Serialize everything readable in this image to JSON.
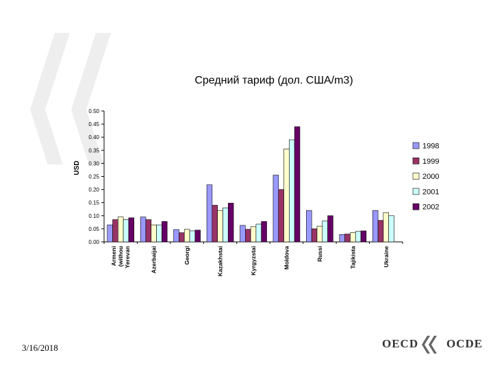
{
  "slide": {
    "date": "3/16/2018",
    "logo": {
      "left_text": "OECD",
      "right_text": "OCDE"
    }
  },
  "chart_data": {
    "type": "bar",
    "title": "Средний тариф (дол. США/m3)",
    "ylabel": "USD",
    "xlabel": "",
    "ylim": [
      0,
      0.5
    ],
    "yticks": [
      "0.00",
      "0.05",
      "0.10",
      "0.15",
      "0.20",
      "0.25",
      "0.30",
      "0.35",
      "0.40",
      "0.45",
      "0.50"
    ],
    "categories": [
      "Armenia (without Yerevan)",
      "Azerbaijan",
      "Georgia",
      "Kazakhstan",
      "Kyrgyzstan",
      "Moldova",
      "Russia",
      "Tajikistan",
      "Ukraine"
    ],
    "category_labels_visible": [
      [
        "Armeni",
        "(withou",
        "Yerevan"
      ],
      [
        "Azerbaijai"
      ],
      [
        "Georgi"
      ],
      [
        "Kazakhstai"
      ],
      [
        "Kyrgyzstai"
      ],
      [
        "Moldova"
      ],
      [
        "Russi"
      ],
      [
        "Tajikista"
      ],
      [
        "Ukraine"
      ]
    ],
    "series": [
      {
        "name": "1998",
        "color": "#9999ff",
        "values": [
          0.065,
          0.095,
          0.047,
          0.218,
          0.063,
          0.255,
          0.12,
          0.028,
          0.12
        ]
      },
      {
        "name": "1999",
        "color": "#993366",
        "values": [
          0.085,
          0.085,
          0.035,
          0.14,
          0.048,
          0.2,
          0.05,
          0.03,
          0.082
        ]
      },
      {
        "name": "2000",
        "color": "#ffffcc",
        "values": [
          0.095,
          0.065,
          0.048,
          0.12,
          0.058,
          0.355,
          0.06,
          0.035,
          0.112
        ]
      },
      {
        "name": "2001",
        "color": "#ccffff",
        "values": [
          0.085,
          0.065,
          0.042,
          0.13,
          0.068,
          0.39,
          0.08,
          0.04,
          0.1
        ]
      },
      {
        "name": "2002",
        "color": "#660066",
        "values": [
          0.092,
          0.078,
          0.045,
          0.148,
          0.078,
          0.44,
          0.1,
          0.042,
          null
        ]
      }
    ],
    "grid": false,
    "legend": "right"
  }
}
